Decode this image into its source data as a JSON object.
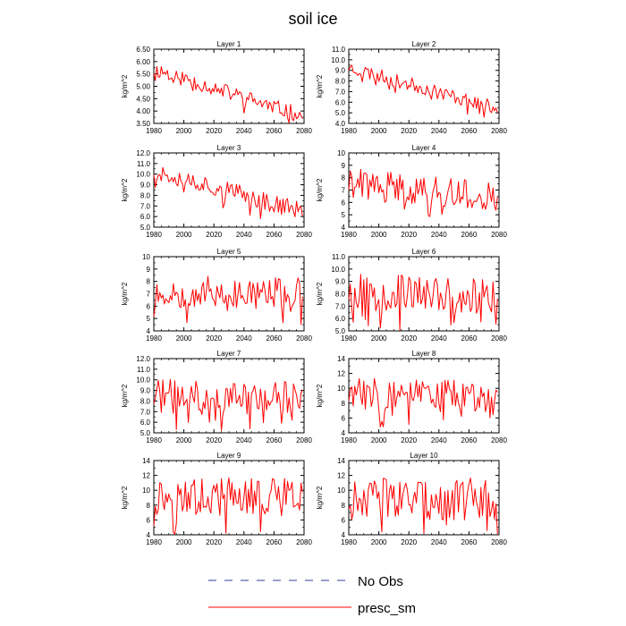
{
  "chart_data": {
    "title": "soil ice",
    "type": "line",
    "xlim": [
      1980,
      2080
    ],
    "x_ticks": [
      1980,
      2000,
      2020,
      2040,
      2060,
      2080
    ],
    "ylabel": "kg/m^2",
    "legend": [
      {
        "label": "No Obs",
        "color": "#3a3aa0",
        "dash": "dashed"
      },
      {
        "label": "presc_sm",
        "color": "#ff0000",
        "dash": "solid"
      }
    ],
    "panels": [
      {
        "title": "Layer 1",
        "ylim": [
          3.5,
          6.5
        ],
        "yticks": [
          3.5,
          4.0,
          4.5,
          5.0,
          5.5,
          6.0,
          6.5
        ],
        "decimals": 2,
        "shape": {
          "start": 5.7,
          "end": 3.8,
          "amp": 0.32,
          "seed": 11,
          "spike": 0.08
        }
      },
      {
        "title": "Layer 2",
        "ylim": [
          4.0,
          11.0
        ],
        "yticks": [
          4.0,
          5.0,
          6.0,
          7.0,
          8.0,
          9.0,
          10.0,
          11.0
        ],
        "decimals": 1,
        "shape": {
          "start": 9.3,
          "end": 5.4,
          "amp": 0.65,
          "seed": 23,
          "spike": 0.08
        }
      },
      {
        "title": "Layer 3",
        "ylim": [
          5.0,
          12.0
        ],
        "yticks": [
          5.0,
          6.0,
          7.0,
          8.0,
          9.0,
          10.0,
          11.0,
          12.0
        ],
        "decimals": 1,
        "shape": {
          "start": 10.4,
          "end": 6.5,
          "amp": 0.9,
          "seed": 37,
          "spike": 0.1
        }
      },
      {
        "title": "Layer 4",
        "ylim": [
          4,
          10
        ],
        "yticks": [
          4,
          5,
          6,
          7,
          8,
          9,
          10
        ],
        "decimals": 0,
        "shape": {
          "start": 7.6,
          "end": 6.4,
          "amp": 1.2,
          "seed": 41,
          "spike": 0.15
        }
      },
      {
        "title": "Layer 5",
        "ylim": [
          4,
          10
        ],
        "yticks": [
          4,
          5,
          6,
          7,
          8,
          9,
          10
        ],
        "decimals": 0,
        "shape": {
          "start": 7.2,
          "end": 7.0,
          "amp": 1.3,
          "seed": 53,
          "spike": 0.12
        }
      },
      {
        "title": "Layer 6",
        "ylim": [
          5.0,
          11.0
        ],
        "yticks": [
          5.0,
          6.0,
          7.0,
          8.0,
          9.0,
          10.0,
          11.0
        ],
        "decimals": 1,
        "shape": {
          "start": 8.2,
          "end": 7.8,
          "amp": 1.5,
          "seed": 67,
          "spike": 0.12
        }
      },
      {
        "title": "Layer 7",
        "ylim": [
          5.0,
          12.0
        ],
        "yticks": [
          5.0,
          6.0,
          7.0,
          8.0,
          9.0,
          10.0,
          11.0,
          12.0
        ],
        "decimals": 1,
        "shape": {
          "start": 8.5,
          "end": 8.3,
          "amp": 1.6,
          "seed": 71,
          "spike": 0.12
        }
      },
      {
        "title": "Layer 8",
        "ylim": [
          4,
          14
        ],
        "yticks": [
          4,
          6,
          8,
          10,
          12,
          14
        ],
        "decimals": 0,
        "shape": {
          "start": 9.3,
          "end": 9.0,
          "amp": 2.2,
          "seed": 83,
          "spike": 0.12
        }
      },
      {
        "title": "Layer 9",
        "ylim": [
          4,
          14
        ],
        "yticks": [
          4,
          6,
          8,
          10,
          12,
          14
        ],
        "decimals": 0,
        "shape": {
          "start": 9.2,
          "end": 9.0,
          "amp": 2.6,
          "seed": 97,
          "spike": 0.12
        }
      },
      {
        "title": "Layer 10",
        "ylim": [
          4,
          14
        ],
        "yticks": [
          4,
          6,
          8,
          10,
          12,
          14
        ],
        "decimals": 0,
        "shape": {
          "start": 8.8,
          "end": 8.8,
          "amp": 2.9,
          "seed": 103,
          "spike": 0.12
        }
      }
    ]
  }
}
